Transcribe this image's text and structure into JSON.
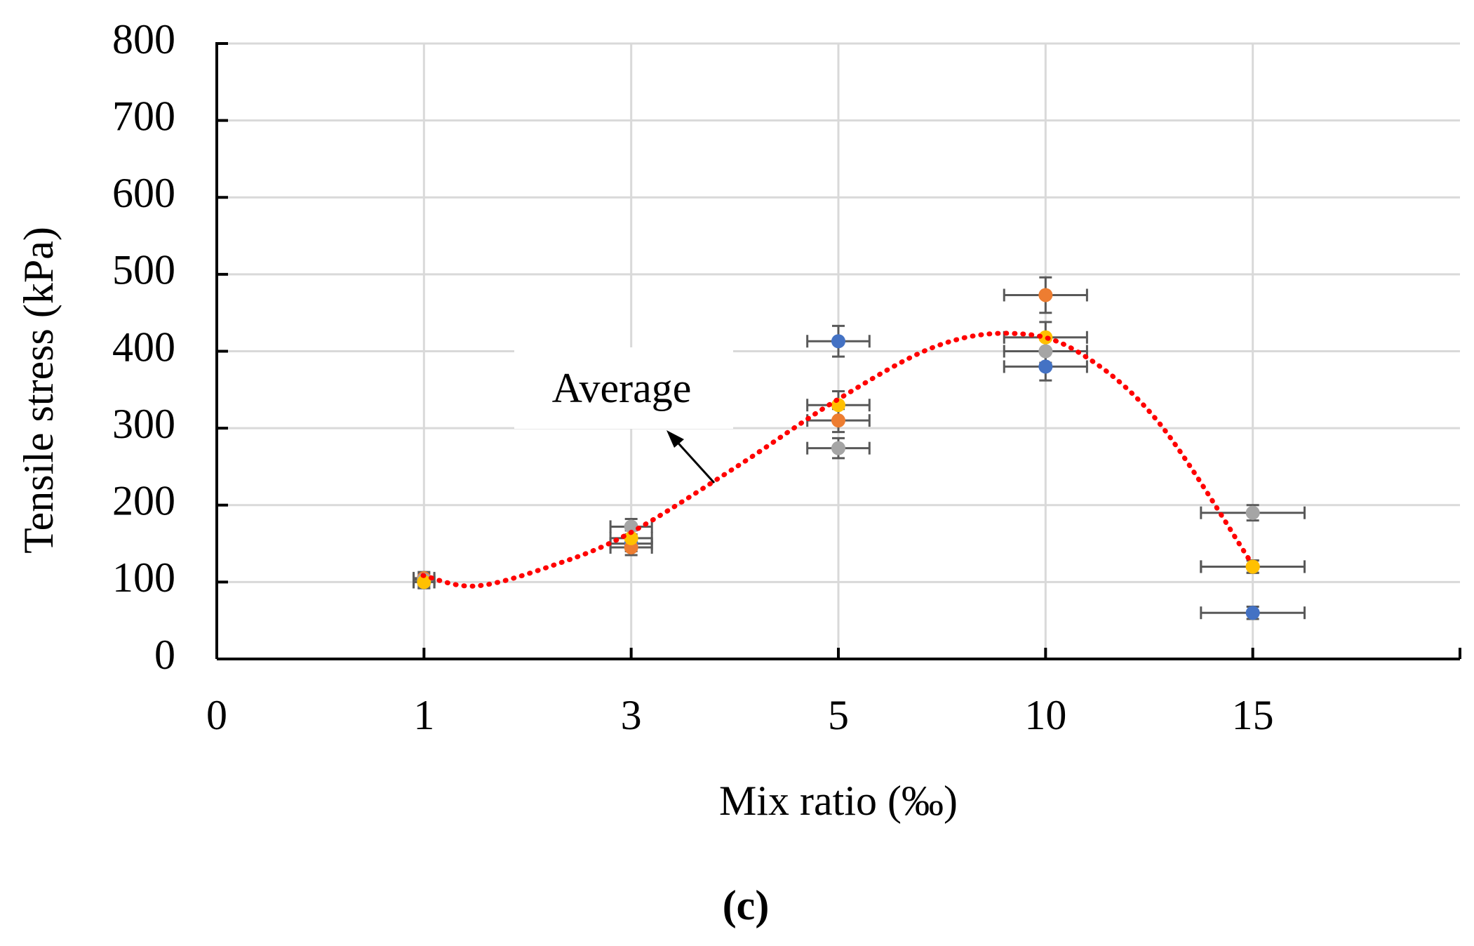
{
  "chart_data": {
    "type": "scatter",
    "xlabel": "Mix ratio (‰)",
    "ylabel": "Tensile stress (kPa)",
    "annotation": "Average",
    "caption": "(c)",
    "categories": [
      "0",
      "1",
      "3",
      "5",
      "10",
      "15"
    ],
    "ylim": [
      0,
      800
    ],
    "yticks": [
      0,
      100,
      200,
      300,
      400,
      500,
      600,
      700,
      800
    ],
    "grid": true,
    "series": [
      {
        "color": "#4472c4",
        "values": [
          null,
          100,
          150,
          413,
          380,
          60
        ],
        "errors": [
          null,
          8,
          10,
          20,
          18,
          8
        ],
        "xerrors": [
          null,
          0.05,
          0.1,
          0.15,
          0.2,
          0.25
        ]
      },
      {
        "color": "#ed7d31",
        "values": [
          null,
          105,
          145,
          310,
          473,
          120
        ],
        "errors": [
          null,
          8,
          10,
          15,
          23,
          8
        ],
        "xerrors": [
          null,
          0.05,
          0.1,
          0.15,
          0.2,
          0.25
        ]
      },
      {
        "color": "#a5a5a5",
        "values": [
          null,
          103,
          172,
          274,
          400,
          190
        ],
        "errors": [
          null,
          8,
          10,
          13,
          15,
          10
        ],
        "xerrors": [
          null,
          0.05,
          0.1,
          0.15,
          0.2,
          0.25
        ]
      },
      {
        "color": "#ffc000",
        "values": [
          null,
          100,
          157,
          330,
          418,
          120
        ],
        "errors": [
          null,
          8,
          10,
          18,
          20,
          8
        ],
        "xerrors": [
          null,
          0.05,
          0.1,
          0.15,
          0.2,
          0.25
        ]
      }
    ]
  }
}
